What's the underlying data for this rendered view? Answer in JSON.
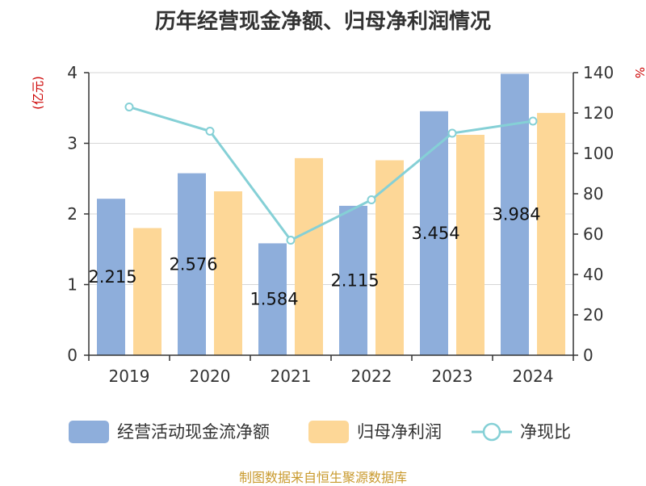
{
  "title": "历年经营现金净额、归母净利润情况",
  "source": "制图数据来自恒生聚源数据库",
  "colors": {
    "cash": "#8eaedb",
    "profit": "#fdd797",
    "ratio": "#85d0d6"
  },
  "chart_data": {
    "type": "bar",
    "categories": [
      "2019",
      "2020",
      "2021",
      "2022",
      "2023",
      "2024"
    ],
    "series": [
      {
        "name": "经营活动现金流净额",
        "type": "bar",
        "axis": "left",
        "color": "#8eaedb",
        "values": [
          2.215,
          2.576,
          1.584,
          2.115,
          3.454,
          3.984
        ],
        "labels": [
          "2.215",
          "2.576",
          "1.584",
          "2.115",
          "3.454",
          "3.984"
        ]
      },
      {
        "name": "归母净利润",
        "type": "bar",
        "axis": "left",
        "color": "#fdd797",
        "values": [
          1.8,
          2.32,
          2.79,
          2.76,
          3.12,
          3.43
        ]
      },
      {
        "name": "净现比",
        "type": "line",
        "axis": "right",
        "color": "#85d0d6",
        "values": [
          123,
          111,
          57,
          77,
          110,
          116
        ]
      }
    ],
    "y_left": {
      "unit": "(亿元)",
      "min": 0,
      "max": 4,
      "ticks": [
        "0",
        "1",
        "2",
        "3",
        "4"
      ]
    },
    "y_right": {
      "unit": "%",
      "min": 0,
      "max": 140,
      "ticks": [
        "0",
        "20",
        "40",
        "60",
        "80",
        "100",
        "120",
        "140"
      ]
    },
    "grid": true,
    "legend_position": "bottom"
  }
}
